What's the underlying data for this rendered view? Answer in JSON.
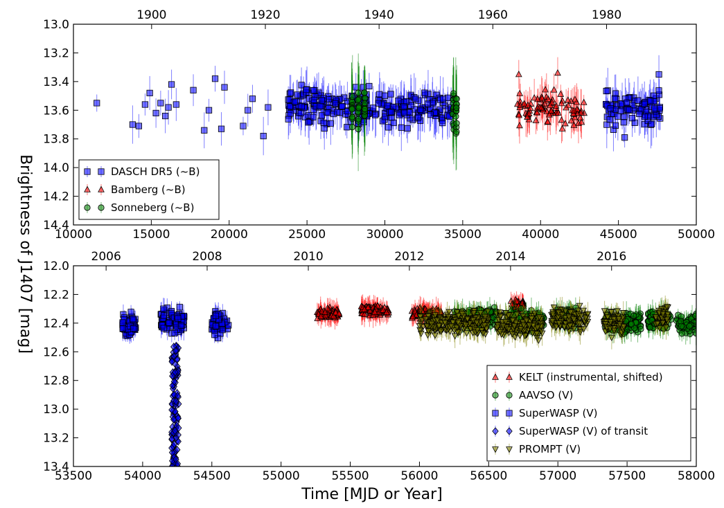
{
  "figure": {
    "ylabel": "Brightness of J1407 [mag]",
    "xlabel": "Time [MJD or Year]"
  },
  "chart_data": [
    {
      "type": "scatter",
      "panel": "top",
      "xlim": [
        10000,
        50000
      ],
      "ylim": [
        13.0,
        14.4
      ],
      "y_inverted": true,
      "xticks": [
        10000,
        15000,
        20000,
        25000,
        30000,
        35000,
        40000,
        45000,
        50000
      ],
      "yticks": [
        13.0,
        13.2,
        13.4,
        13.6,
        13.8,
        14.0,
        14.2,
        14.4
      ],
      "xtick_labels": [
        "10000",
        "15000",
        "20000",
        "25000",
        "30000",
        "35000",
        "40000",
        "45000",
        "50000"
      ],
      "ytick_labels": [
        "13.0",
        "13.2",
        "13.4",
        "13.6",
        "13.8",
        "14.0",
        "14.2",
        "14.4"
      ],
      "top_axis": {
        "years": [
          1900,
          1920,
          1940,
          1960,
          1980
        ],
        "mjd": [
          15020,
          22325,
          29629,
          36934,
          44239
        ],
        "labels": [
          "1900",
          "1920",
          "1940",
          "1960",
          "1980"
        ]
      },
      "legend": {
        "position": "lower-left",
        "entries": [
          "DASCH DR5 (~B)",
          "Bamberg (~B)",
          "Sonneberg (~B)"
        ]
      },
      "series": [
        {
          "name": "DASCH DR5 (~B)",
          "marker": "square",
          "color": "#0000ff",
          "x_range": [
            11500,
            47800
          ],
          "y_center": 13.58,
          "y_spread": 0.1,
          "points": [
            [
              11500,
              13.55
            ],
            [
              13800,
              13.7
            ],
            [
              14200,
              13.71
            ],
            [
              14600,
              13.56
            ],
            [
              14900,
              13.48
            ],
            [
              15300,
              13.62
            ],
            [
              15600,
              13.55
            ],
            [
              15900,
              13.64
            ],
            [
              16100,
              13.58
            ],
            [
              16300,
              13.42
            ],
            [
              16600,
              13.56
            ],
            [
              17700,
              13.46
            ],
            [
              18400,
              13.74
            ],
            [
              18700,
              13.6
            ],
            [
              19100,
              13.38
            ],
            [
              19500,
              13.73
            ],
            [
              19700,
              13.44
            ],
            [
              20900,
              13.71
            ],
            [
              21200,
              13.6
            ],
            [
              21500,
              13.52
            ],
            [
              22200,
              13.78
            ],
            [
              22500,
              13.58
            ],
            [
              45400,
              13.79
            ],
            [
              44200,
              13.56
            ],
            [
              47600,
              13.35
            ]
          ]
        },
        {
          "name": "Bamberg (~B)",
          "marker": "triangle-up",
          "color": "#ff0000",
          "x_range": [
            38500,
            42800
          ],
          "y_center": 13.58,
          "y_spread": 0.1,
          "points": [
            [
              38600,
              13.35
            ],
            [
              41100,
              13.34
            ],
            [
              42200,
              13.65
            ],
            [
              42800,
              13.62
            ]
          ]
        },
        {
          "name": "Sonneberg (~B)",
          "marker": "circle",
          "color": "#008000",
          "columns": [
            27900,
            28300,
            28700,
            34400,
            34600
          ],
          "y_center": 13.6,
          "y_spread": 0.12
        }
      ]
    },
    {
      "type": "scatter",
      "panel": "bottom",
      "xlim": [
        53500,
        58000
      ],
      "ylim": [
        12.0,
        13.4
      ],
      "y_inverted": true,
      "xticks": [
        53500,
        54000,
        54500,
        55000,
        55500,
        56000,
        56500,
        57000,
        57500,
        58000
      ],
      "yticks": [
        12.0,
        12.2,
        12.4,
        12.6,
        12.8,
        13.0,
        13.2,
        13.4
      ],
      "xtick_labels": [
        "53500",
        "54000",
        "54500",
        "55000",
        "55500",
        "56000",
        "56500",
        "57000",
        "57500",
        "58000"
      ],
      "ytick_labels": [
        "12.0",
        "12.2",
        "12.4",
        "12.6",
        "12.8",
        "13.0",
        "13.2",
        "13.4"
      ],
      "top_axis": {
        "years": [
          2006,
          2008,
          2010,
          2012,
          2014,
          2016
        ],
        "mjd": [
          53736,
          54466,
          55197,
          55927,
          56658,
          57388
        ],
        "labels": [
          "2006",
          "2008",
          "2010",
          "2012",
          "2014",
          "2016"
        ]
      },
      "legend": {
        "position": "lower-right",
        "entries": [
          "KELT (instrumental, shifted)",
          "AAVSO (V)",
          "SuperWASP (V)",
          "SuperWASP (V) of transit",
          "PROMPT (V)"
        ]
      },
      "series": [
        {
          "name": "SuperWASP (V)",
          "marker": "square",
          "color": "#0000ff",
          "clusters": [
            [
              53850,
              53950,
              12.42
            ],
            [
              54130,
              54300,
              12.38
            ],
            [
              54500,
              54620,
              12.4
            ]
          ],
          "y_spread": 0.12
        },
        {
          "name": "SuperWASP (V) of transit",
          "marker": "diamond",
          "color": "#0000ff",
          "x_range": [
            54210,
            54260
          ],
          "y_range": [
            12.55,
            13.4
          ]
        },
        {
          "name": "KELT (instrumental, shifted)",
          "marker": "triangle-up",
          "color": "#ff0000",
          "clusters": [
            [
              55260,
              55420,
              12.33
            ],
            [
              55580,
              55780,
              12.31
            ],
            [
              55940,
              56160,
              12.33
            ],
            [
              56660,
              56760,
              12.28
            ]
          ],
          "y_spread": 0.05
        },
        {
          "name": "AAVSO (V)",
          "marker": "circle",
          "color": "#008000",
          "clusters": [
            [
              56250,
              56560,
              12.36
            ],
            [
              56620,
              56900,
              12.38
            ],
            [
              56980,
              57150,
              12.36
            ],
            [
              57330,
              57600,
              12.4
            ],
            [
              57650,
              57820,
              12.38
            ],
            [
              57850,
              58000,
              12.4
            ]
          ],
          "y_spread": 0.1
        },
        {
          "name": "PROMPT (V)",
          "marker": "triangle-down",
          "color": "#808000",
          "clusters": [
            [
              56000,
              56500,
              12.4
            ],
            [
              56550,
              56900,
              12.42
            ],
            [
              56950,
              57220,
              12.38
            ],
            [
              57330,
              57480,
              12.4
            ],
            [
              57700,
              57800,
              12.36
            ]
          ],
          "y_spread": 0.12
        }
      ]
    }
  ]
}
